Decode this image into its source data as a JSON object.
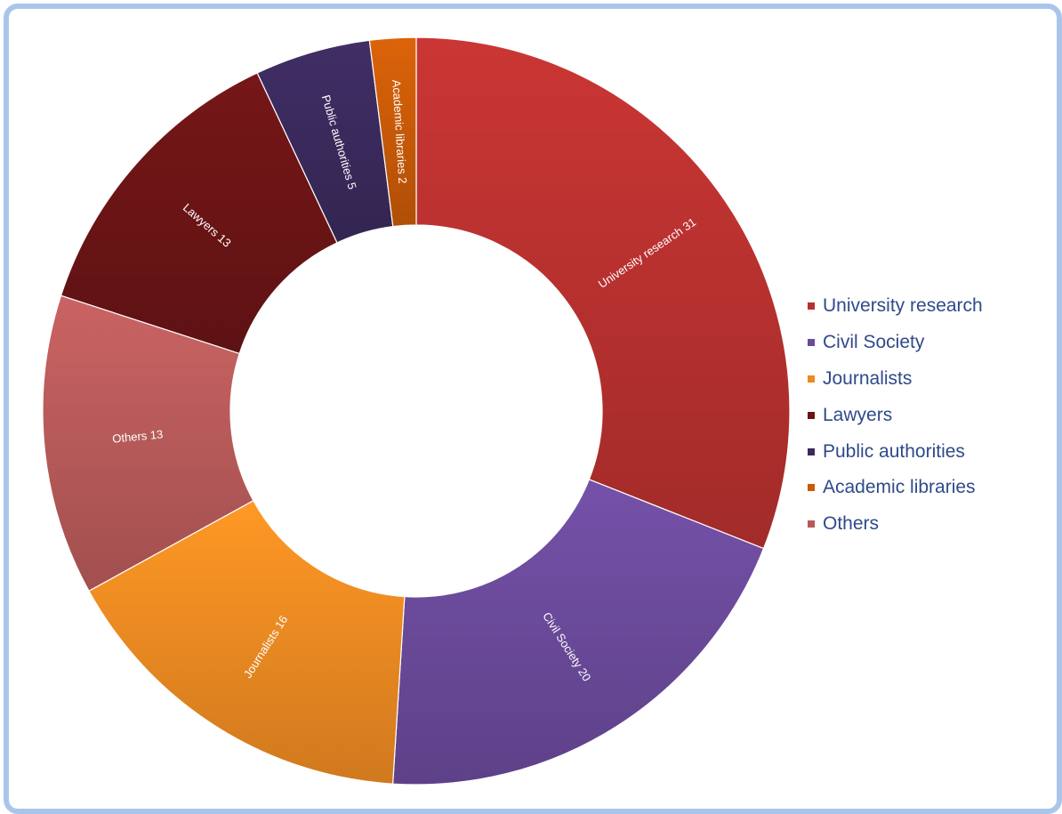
{
  "chart_data": {
    "type": "pie",
    "style": "donut",
    "categories": [
      "University research",
      "Civil Society",
      "Journalists",
      "Lawyers",
      "Public authorities",
      "Academic libraries",
      "Others"
    ],
    "values": [
      31,
      20,
      16,
      13,
      5,
      2,
      13
    ],
    "slice_order": [
      "University research",
      "Civil Society",
      "Journalists",
      "Others",
      "Lawyers",
      "Public authorities",
      "Academic libraries"
    ],
    "slice_labels": {
      "University research": "University research 31",
      "Civil Society": "Civil Society 20",
      "Journalists": "Journalists 16",
      "Others": "Others 13",
      "Lawyers": "Lawyers 13",
      "Public authorities": "Public authorities 5",
      "Academic libraries": "Academic libraries 2"
    },
    "colors": {
      "University research": "#b8312f",
      "Civil Society": "#6a4a9a",
      "Journalists": "#ec8a22",
      "Others": "#b85a5a",
      "Lawyers": "#6b1416",
      "Public authorities": "#3a2a5c",
      "Academic libraries": "#c85a08"
    },
    "legend": {
      "position": "right",
      "items": [
        "University research",
        "Civil Society",
        "Journalists",
        "Lawyers",
        "Public authorities",
        "Academic libraries",
        "Others"
      ]
    }
  }
}
